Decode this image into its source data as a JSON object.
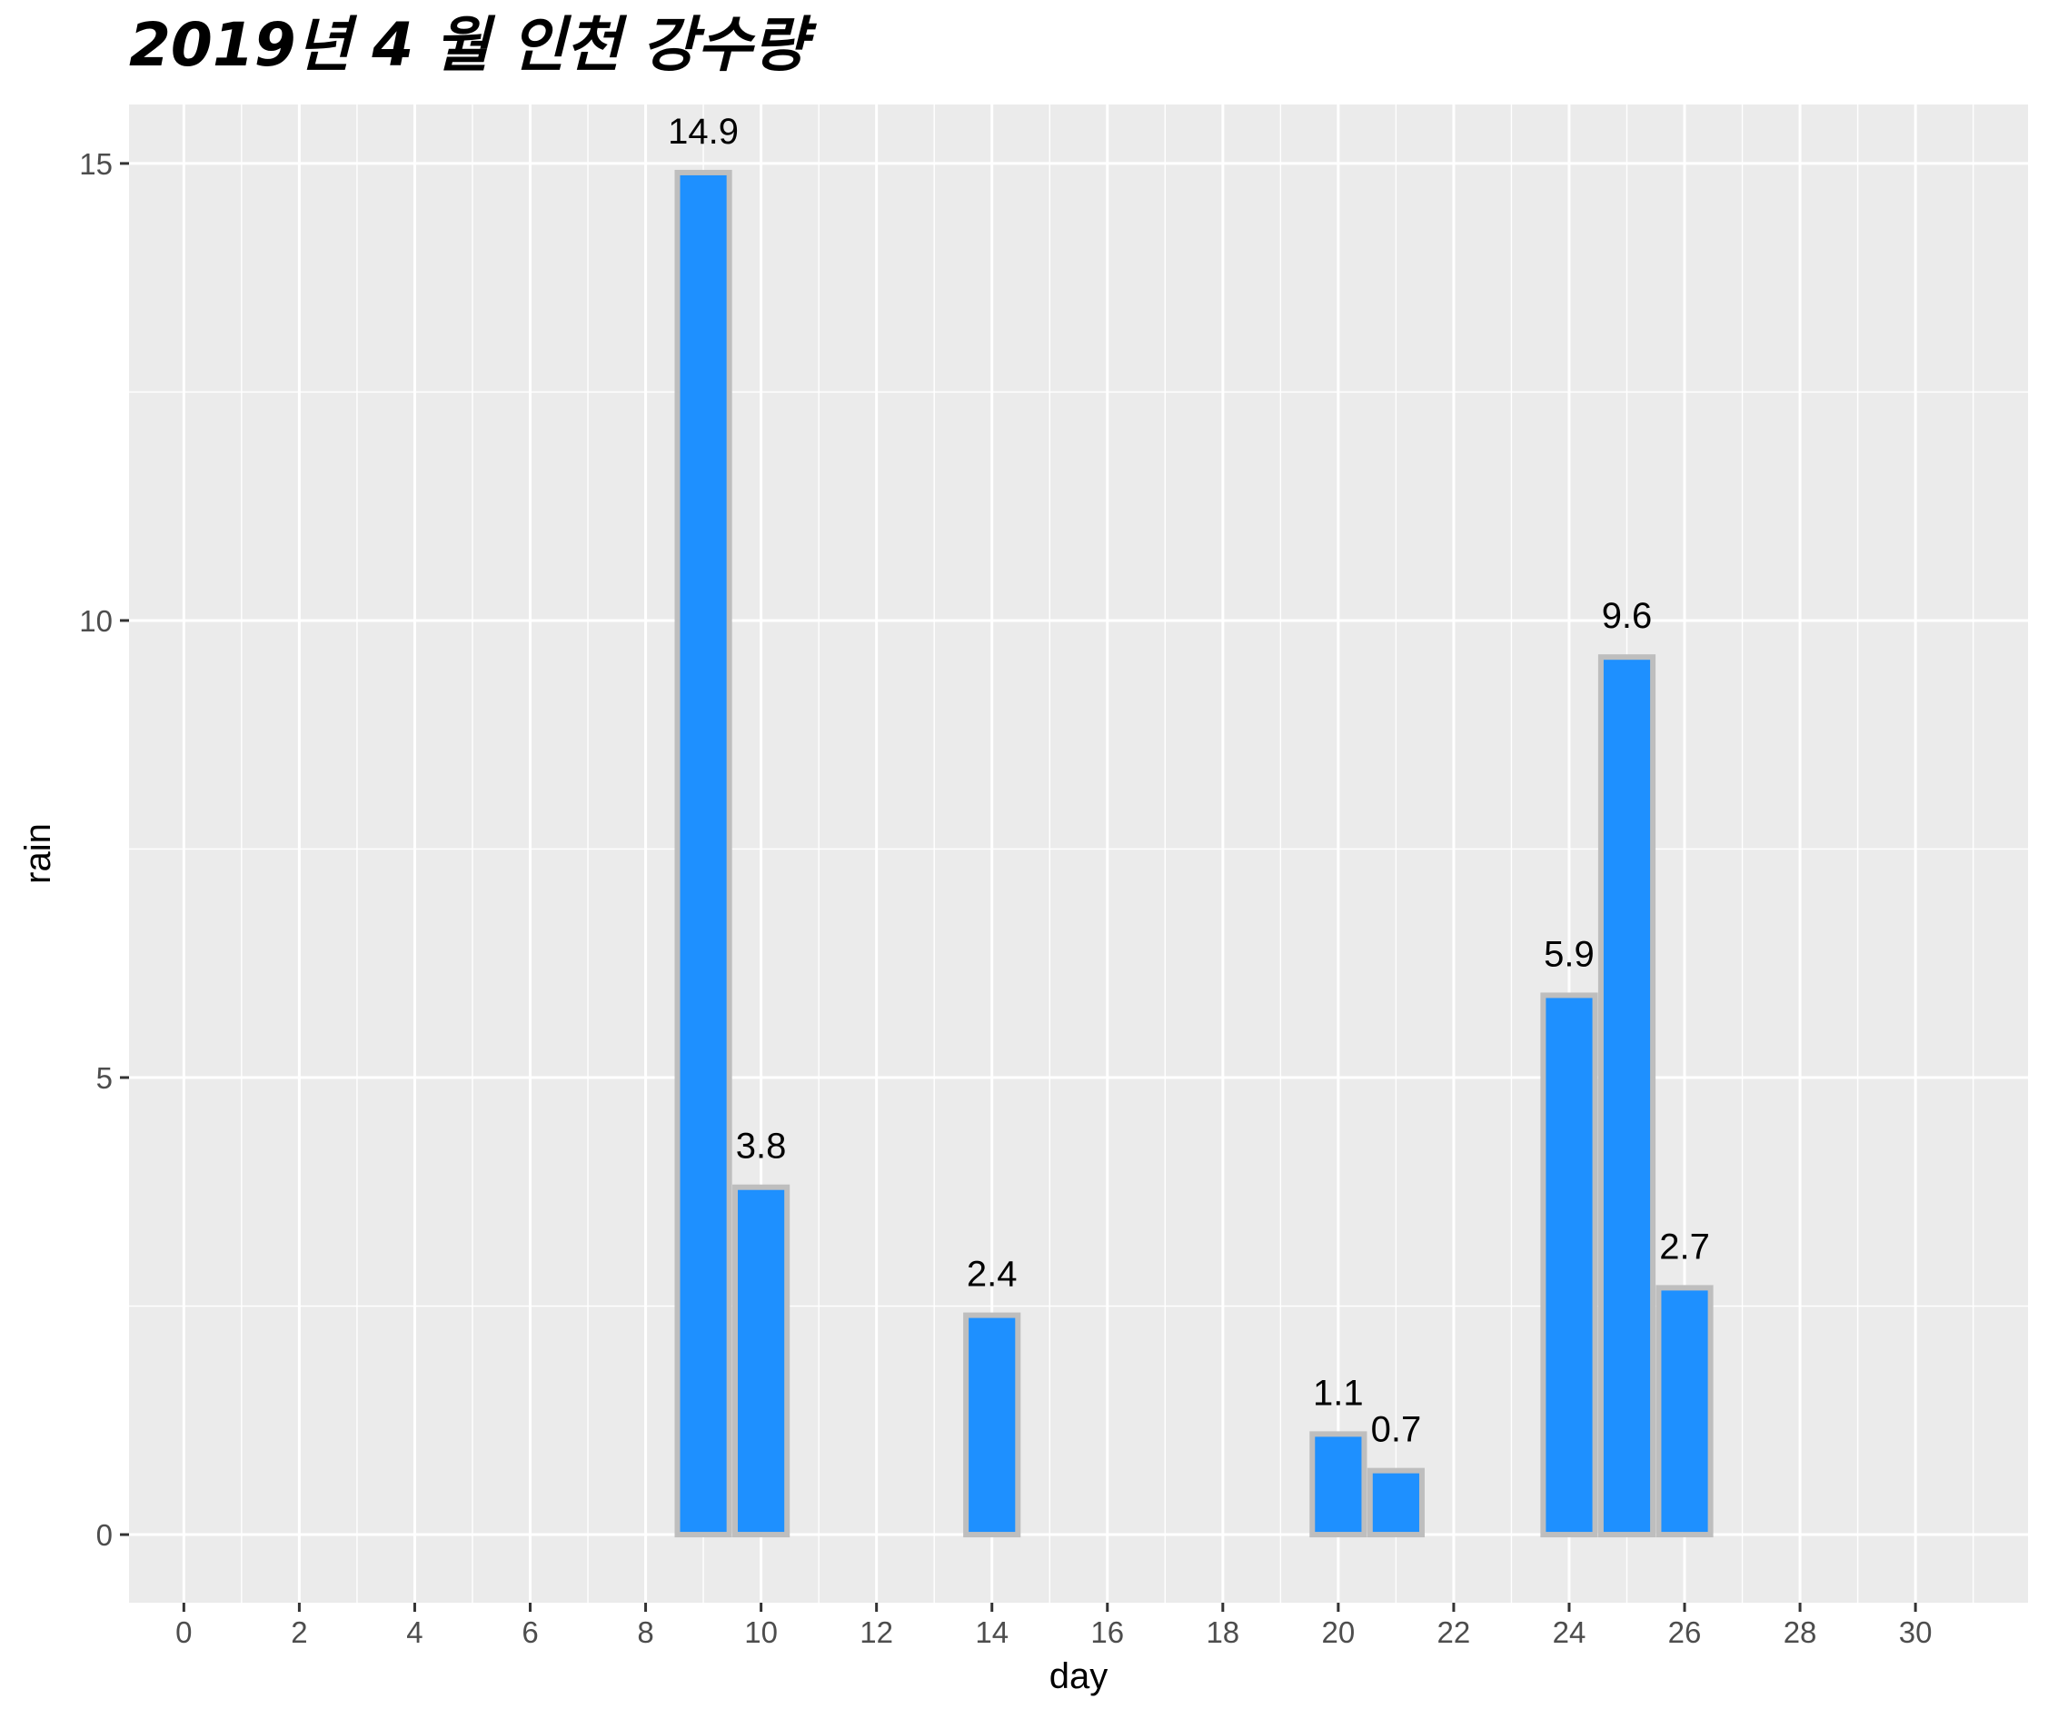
{
  "chart_data": {
    "type": "bar",
    "title": "2019년 4 월 인천 강수량",
    "xlabel": "day",
    "ylabel": "rain",
    "xlim": [
      -0.95,
      31.95
    ],
    "ylim": [
      -0.745,
      15.645
    ],
    "x_major_ticks": [
      0,
      2,
      4,
      6,
      8,
      10,
      12,
      14,
      16,
      18,
      20,
      22,
      24,
      26,
      28,
      30
    ],
    "x_tick_labels": [
      "0",
      "2",
      "4",
      "6",
      "8",
      "10",
      "12",
      "14",
      "16",
      "18",
      "20",
      "22",
      "24",
      "26",
      "28",
      "30"
    ],
    "y_major_ticks": [
      0,
      5,
      10,
      15
    ],
    "y_tick_labels": [
      "0",
      "5",
      "10",
      "15"
    ],
    "grid": true,
    "bar_width": 0.9,
    "bar_fill": "#1E90FF",
    "bar_outline": "#BEBEBE",
    "panel_background": "#EBEBEB",
    "grid_color": "#FFFFFF",
    "points": [
      {
        "day": 9,
        "rain": 14.9,
        "label": "14.9"
      },
      {
        "day": 10,
        "rain": 3.8,
        "label": "3.8"
      },
      {
        "day": 14,
        "rain": 2.4,
        "label": "2.4"
      },
      {
        "day": 20,
        "rain": 1.1,
        "label": "1.1"
      },
      {
        "day": 21,
        "rain": 0.7,
        "label": "0.7"
      },
      {
        "day": 24,
        "rain": 5.9,
        "label": "5.9"
      },
      {
        "day": 25,
        "rain": 9.6,
        "label": "9.6"
      },
      {
        "day": 26,
        "rain": 2.7,
        "label": "2.7"
      }
    ]
  }
}
